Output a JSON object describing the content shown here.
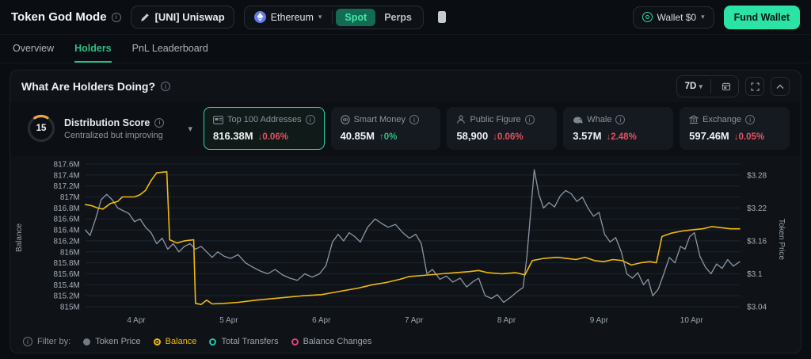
{
  "colors": {
    "accent_green": "#2ebd85",
    "bright_green": "#2be3a4",
    "yellow": "#f0b90b",
    "red": "#e0535f",
    "gray_line": "#8b97a4",
    "grid": "#1a2431",
    "tick_text": "#a7afb9"
  },
  "header": {
    "title": "Token God Mode",
    "token_pill": "[UNI] Uniswap",
    "network": "Ethereum",
    "market_tabs": {
      "spot": "Spot",
      "perps": "Perps"
    },
    "active_market_tab": "Spot",
    "wallet_label": "Wallet $0",
    "fund_wallet_label": "Fund Wallet"
  },
  "nav": {
    "tabs": {
      "overview": "Overview",
      "holders": "Holders",
      "pnl": "PnL Leaderboard"
    },
    "active": "Holders"
  },
  "panel": {
    "title": "What Are Holders Doing?",
    "range_label": "7D"
  },
  "score_card": {
    "title": "Distribution Score",
    "score": "15",
    "subtitle": "Centralized but improving",
    "arc_color": "#f0a33a"
  },
  "stat_cards": [
    {
      "icon": "wallet-card",
      "label": "Top 100 Addresses",
      "value": "816.38M",
      "change": "0.06%",
      "direction": "down",
      "selected": true
    },
    {
      "icon": "robot",
      "label": "Smart Money",
      "value": "40.85M",
      "change": "0%",
      "direction": "up",
      "selected": false
    },
    {
      "icon": "public-figure",
      "label": "Public Figure",
      "value": "58,900",
      "change": "0.06%",
      "direction": "down",
      "selected": false
    },
    {
      "icon": "whale",
      "label": "Whale",
      "value": "3.57M",
      "change": "2.48%",
      "direction": "down",
      "selected": false
    },
    {
      "icon": "bank",
      "label": "Exchange",
      "value": "597.46M",
      "change": "0.05%",
      "direction": "down",
      "selected": false
    }
  ],
  "chart_data": {
    "type": "line",
    "x_range": [
      3.45,
      10.53
    ],
    "x_ticks": [
      {
        "label": "4 Apr",
        "value": 4
      },
      {
        "label": "5 Apr",
        "value": 5
      },
      {
        "label": "6 Apr",
        "value": 6
      },
      {
        "label": "7 Apr",
        "value": 7
      },
      {
        "label": "8 Apr",
        "value": 8
      },
      {
        "label": "9 Apr",
        "value": 9
      },
      {
        "label": "10 Apr",
        "value": 10
      }
    ],
    "left_axis": {
      "title": "Balance",
      "range": [
        815,
        817.6
      ],
      "ticks": [
        {
          "label": "817.6M",
          "value": 817.6
        },
        {
          "label": "817.4M",
          "value": 817.4
        },
        {
          "label": "817.2M",
          "value": 817.2
        },
        {
          "label": "817M",
          "value": 817
        },
        {
          "label": "816.8M",
          "value": 816.8
        },
        {
          "label": "816.6M",
          "value": 816.6
        },
        {
          "label": "816.4M",
          "value": 816.4
        },
        {
          "label": "816.2M",
          "value": 816.2
        },
        {
          "label": "816M",
          "value": 816
        },
        {
          "label": "815.8M",
          "value": 815.8
        },
        {
          "label": "815.6M",
          "value": 815.6
        },
        {
          "label": "815.4M",
          "value": 815.4
        },
        {
          "label": "815.2M",
          "value": 815.2
        },
        {
          "label": "815M",
          "value": 815
        }
      ]
    },
    "right_axis": {
      "title": "Token Price",
      "range": [
        3.04,
        3.28
      ],
      "ticks": [
        {
          "label": "$3.28",
          "value": 3.28
        },
        {
          "label": "$3.22",
          "value": 3.22
        },
        {
          "label": "$3.16",
          "value": 3.16
        },
        {
          "label": "$3.1",
          "value": 3.1
        },
        {
          "label": "$3.04",
          "value": 3.04
        }
      ]
    },
    "series": [
      {
        "name": "Token Price",
        "axis": "right",
        "color": "#8b97a4",
        "width": 1.3,
        "points": [
          [
            3.45,
            3.18
          ],
          [
            3.5,
            3.17
          ],
          [
            3.56,
            3.2
          ],
          [
            3.62,
            3.235
          ],
          [
            3.68,
            3.245
          ],
          [
            3.74,
            3.235
          ],
          [
            3.8,
            3.22
          ],
          [
            3.86,
            3.215
          ],
          [
            3.92,
            3.21
          ],
          [
            3.98,
            3.195
          ],
          [
            4.04,
            3.2
          ],
          [
            4.1,
            3.185
          ],
          [
            4.16,
            3.175
          ],
          [
            4.22,
            3.155
          ],
          [
            4.28,
            3.165
          ],
          [
            4.34,
            3.145
          ],
          [
            4.4,
            3.155
          ],
          [
            4.46,
            3.14
          ],
          [
            4.52,
            3.15
          ],
          [
            4.58,
            3.155
          ],
          [
            4.64,
            3.145
          ],
          [
            4.7,
            3.15
          ],
          [
            4.76,
            3.14
          ],
          [
            4.82,
            3.13
          ],
          [
            4.88,
            3.14
          ],
          [
            4.95,
            3.132
          ],
          [
            5.02,
            3.128
          ],
          [
            5.1,
            3.135
          ],
          [
            5.18,
            3.12
          ],
          [
            5.26,
            3.112
          ],
          [
            5.34,
            3.105
          ],
          [
            5.42,
            3.1
          ],
          [
            5.5,
            3.108
          ],
          [
            5.58,
            3.098
          ],
          [
            5.66,
            3.092
          ],
          [
            5.74,
            3.088
          ],
          [
            5.82,
            3.1
          ],
          [
            5.9,
            3.094
          ],
          [
            5.98,
            3.1
          ],
          [
            6.05,
            3.115
          ],
          [
            6.12,
            3.158
          ],
          [
            6.18,
            3.172
          ],
          [
            6.24,
            3.16
          ],
          [
            6.3,
            3.175
          ],
          [
            6.36,
            3.168
          ],
          [
            6.42,
            3.158
          ],
          [
            6.5,
            3.185
          ],
          [
            6.58,
            3.2
          ],
          [
            6.65,
            3.192
          ],
          [
            6.72,
            3.185
          ],
          [
            6.8,
            3.19
          ],
          [
            6.88,
            3.175
          ],
          [
            6.95,
            3.165
          ],
          [
            7.02,
            3.172
          ],
          [
            7.08,
            3.155
          ],
          [
            7.14,
            3.1
          ],
          [
            7.2,
            3.108
          ],
          [
            7.28,
            3.09
          ],
          [
            7.35,
            3.096
          ],
          [
            7.42,
            3.085
          ],
          [
            7.5,
            3.092
          ],
          [
            7.57,
            3.076
          ],
          [
            7.64,
            3.086
          ],
          [
            7.7,
            3.092
          ],
          [
            7.77,
            3.06
          ],
          [
            7.84,
            3.055
          ],
          [
            7.9,
            3.062
          ],
          [
            7.97,
            3.048
          ],
          [
            8.05,
            3.058
          ],
          [
            8.12,
            3.068
          ],
          [
            8.18,
            3.075
          ],
          [
            8.22,
            3.13
          ],
          [
            8.26,
            3.21
          ],
          [
            8.3,
            3.29
          ],
          [
            8.35,
            3.245
          ],
          [
            8.4,
            3.22
          ],
          [
            8.46,
            3.23
          ],
          [
            8.52,
            3.222
          ],
          [
            8.58,
            3.242
          ],
          [
            8.64,
            3.252
          ],
          [
            8.7,
            3.246
          ],
          [
            8.76,
            3.232
          ],
          [
            8.82,
            3.24
          ],
          [
            8.88,
            3.22
          ],
          [
            8.94,
            3.205
          ],
          [
            9.0,
            3.212
          ],
          [
            9.06,
            3.172
          ],
          [
            9.12,
            3.158
          ],
          [
            9.18,
            3.166
          ],
          [
            9.24,
            3.14
          ],
          [
            9.3,
            3.1
          ],
          [
            9.36,
            3.092
          ],
          [
            9.42,
            3.102
          ],
          [
            9.48,
            3.08
          ],
          [
            9.53,
            3.09
          ],
          [
            9.58,
            3.06
          ],
          [
            9.64,
            3.072
          ],
          [
            9.7,
            3.1
          ],
          [
            9.76,
            3.13
          ],
          [
            9.82,
            3.12
          ],
          [
            9.88,
            3.15
          ],
          [
            9.93,
            3.145
          ],
          [
            9.98,
            3.168
          ],
          [
            10.03,
            3.175
          ],
          [
            10.09,
            3.132
          ],
          [
            10.15,
            3.112
          ],
          [
            10.21,
            3.1
          ],
          [
            10.27,
            3.118
          ],
          [
            10.33,
            3.11
          ],
          [
            10.39,
            3.126
          ],
          [
            10.45,
            3.114
          ],
          [
            10.52,
            3.122
          ]
        ]
      },
      {
        "name": "Balance",
        "axis": "left",
        "color": "#f0b90b",
        "width": 1.6,
        "points": [
          [
            3.45,
            816.86
          ],
          [
            3.52,
            816.84
          ],
          [
            3.58,
            816.8
          ],
          [
            3.64,
            816.78
          ],
          [
            3.72,
            816.88
          ],
          [
            3.8,
            816.92
          ],
          [
            3.85,
            817.0
          ],
          [
            3.98,
            817.0
          ],
          [
            4.04,
            817.04
          ],
          [
            4.1,
            817.12
          ],
          [
            4.16,
            817.3
          ],
          [
            4.22,
            817.44
          ],
          [
            4.33,
            817.46
          ],
          [
            4.36,
            816.22
          ],
          [
            4.44,
            816.16
          ],
          [
            4.52,
            816.2
          ],
          [
            4.62,
            816.22
          ],
          [
            4.64,
            815.06
          ],
          [
            4.7,
            815.04
          ],
          [
            4.76,
            815.12
          ],
          [
            4.82,
            815.05
          ],
          [
            4.95,
            815.06
          ],
          [
            5.1,
            815.08
          ],
          [
            5.3,
            815.12
          ],
          [
            5.55,
            815.16
          ],
          [
            5.8,
            815.2
          ],
          [
            6.0,
            815.22
          ],
          [
            6.2,
            815.28
          ],
          [
            6.4,
            815.34
          ],
          [
            6.55,
            815.4
          ],
          [
            6.7,
            815.44
          ],
          [
            6.85,
            815.5
          ],
          [
            6.95,
            815.55
          ],
          [
            7.1,
            815.57
          ],
          [
            7.3,
            815.6
          ],
          [
            7.45,
            815.62
          ],
          [
            7.6,
            815.64
          ],
          [
            7.7,
            815.66
          ],
          [
            7.8,
            815.62
          ],
          [
            7.95,
            815.6
          ],
          [
            8.1,
            815.62
          ],
          [
            8.2,
            815.58
          ],
          [
            8.28,
            815.84
          ],
          [
            8.4,
            815.88
          ],
          [
            8.55,
            815.9
          ],
          [
            8.65,
            815.88
          ],
          [
            8.75,
            815.86
          ],
          [
            8.85,
            815.9
          ],
          [
            8.95,
            815.84
          ],
          [
            9.05,
            815.82
          ],
          [
            9.15,
            815.86
          ],
          [
            9.25,
            815.84
          ],
          [
            9.35,
            815.76
          ],
          [
            9.45,
            815.8
          ],
          [
            9.55,
            815.82
          ],
          [
            9.62,
            815.8
          ],
          [
            9.68,
            816.28
          ],
          [
            9.78,
            816.34
          ],
          [
            9.9,
            816.38
          ],
          [
            10.0,
            816.4
          ],
          [
            10.12,
            816.42
          ],
          [
            10.22,
            816.46
          ],
          [
            10.32,
            816.44
          ],
          [
            10.42,
            816.42
          ],
          [
            10.52,
            816.42
          ]
        ]
      }
    ]
  },
  "legend": {
    "label": "Filter by:",
    "items": [
      {
        "label": "Token Price",
        "color": "#717b85",
        "style": "filled",
        "active": false
      },
      {
        "label": "Balance",
        "color": "#f0b90b",
        "style": "radio",
        "active": true
      },
      {
        "label": "Total Transfers",
        "color": "#27c4a8",
        "style": "ring",
        "active": false
      },
      {
        "label": "Balance Changes",
        "color": "#e0407f",
        "style": "ring",
        "active": false
      }
    ]
  }
}
